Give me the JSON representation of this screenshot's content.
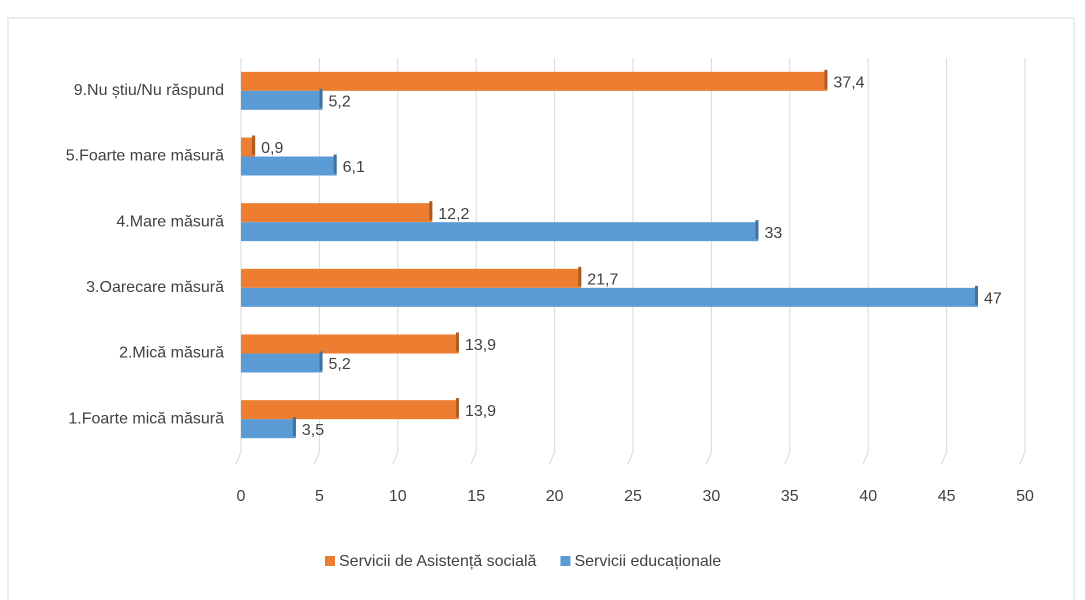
{
  "chart_data": {
    "type": "bar",
    "orientation": "horizontal",
    "categories": [
      "9.Nu știu/Nu răspund",
      "5.Foarte mare măsură",
      "4.Mare măsură",
      "3.Oarecare măsură",
      "2.Mică măsură",
      "1.Foarte mică măsură"
    ],
    "series": [
      {
        "name": "Servicii de Asistență socială",
        "color": "#ed7d31",
        "values": [
          37.4,
          0.9,
          12.2,
          21.7,
          13.9,
          13.9
        ],
        "value_labels": [
          "37,4",
          "0,9",
          "12,2",
          "21,7",
          "13,9",
          "13,9"
        ]
      },
      {
        "name": "Servicii educaționale",
        "color": "#5b9bd5",
        "values": [
          5.2,
          6.1,
          33,
          47,
          5.2,
          3.5
        ],
        "value_labels": [
          "5,2",
          "6,1",
          "33",
          "47",
          "5,2",
          "3,5"
        ]
      }
    ],
    "xlim": [
      0,
      50
    ],
    "xticks": [
      0,
      5,
      10,
      15,
      20,
      25,
      30,
      35,
      40,
      45,
      50
    ],
    "grid": true,
    "legend": "bottom"
  }
}
